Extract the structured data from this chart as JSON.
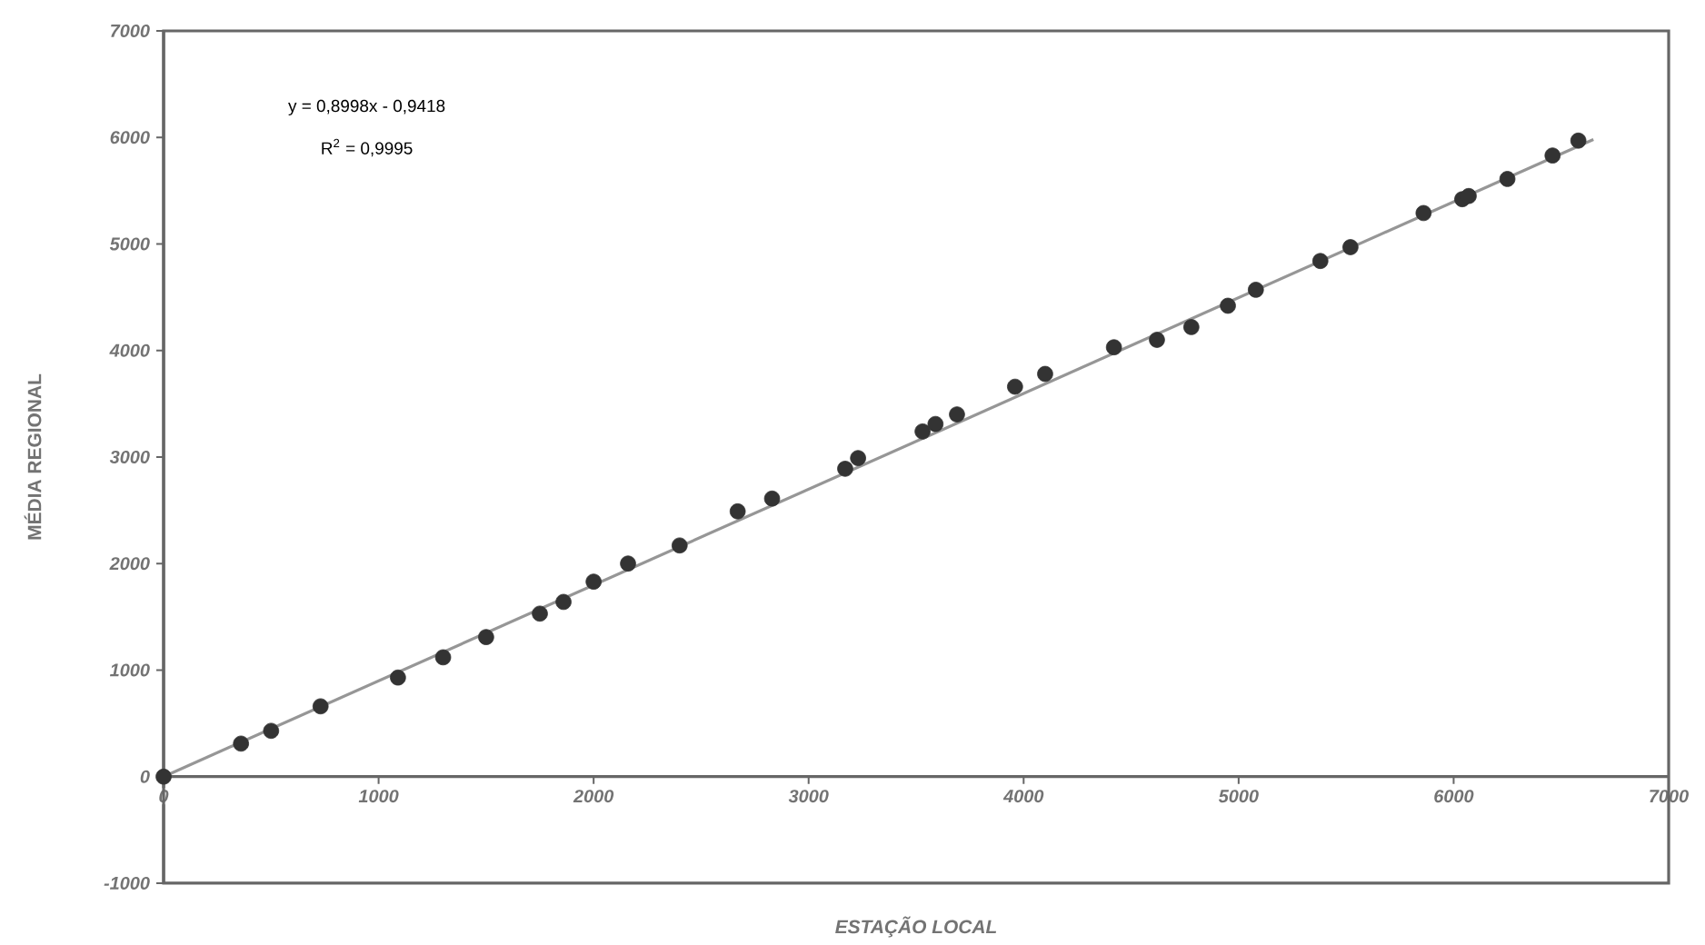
{
  "chart_data": {
    "type": "scatter",
    "xlabel": "ESTAÇÃO LOCAL",
    "ylabel": "MÉDIA REGIONAL",
    "annotations": [
      "y = 0,8998x - 0,9418",
      "R$^{2}$ = 0,9995"
    ],
    "xlim": [
      0,
      7000
    ],
    "ylim": [
      -1000,
      7000
    ],
    "xticks": [
      0,
      1000,
      2000,
      3000,
      4000,
      5000,
      6000,
      7000
    ],
    "yticks": [
      -1000,
      0,
      1000,
      2000,
      3000,
      4000,
      5000,
      6000,
      7000
    ],
    "grid": false,
    "marker": "circle",
    "series": [
      {
        "type": "scatter",
        "color": "#333333",
        "x": [
          0,
          360,
          500,
          730,
          1090,
          1300,
          1500,
          1750,
          1860,
          2000,
          2160,
          2400,
          2670,
          2830,
          3170,
          3230,
          3530,
          3590,
          3690,
          3960,
          4100,
          4420,
          4620,
          4780,
          4950,
          5080,
          5380,
          5520,
          5860,
          6040,
          6070,
          6250,
          6460,
          6580
        ],
        "values": [
          0,
          310,
          430,
          660,
          930,
          1120,
          1310,
          1530,
          1640,
          1830,
          2000,
          2170,
          2490,
          2610,
          2890,
          2990,
          3240,
          3310,
          3400,
          3660,
          3780,
          4030,
          4100,
          4220,
          4420,
          4570,
          4840,
          4970,
          5290,
          5420,
          5450,
          5610,
          5830,
          5970
        ]
      },
      {
        "type": "line",
        "color": "#969696",
        "line_style": "solid",
        "marker": "none",
        "x": [
          0,
          6650
        ],
        "values": [
          0,
          5980
        ]
      }
    ]
  }
}
